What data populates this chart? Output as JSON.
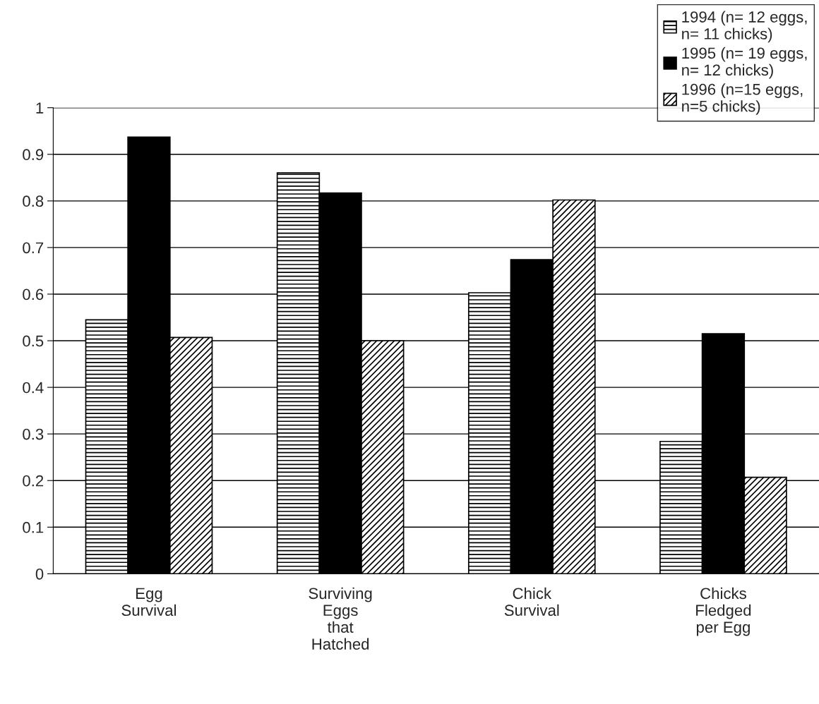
{
  "chart_data": {
    "type": "bar",
    "categories": [
      "Egg\nSurvival",
      "Surviving\nEggs\nthat\nHatched",
      "Chick\nSurvival",
      "Chicks\nFledged\nper Egg"
    ],
    "series": [
      {
        "name": "1994 (n= 12 eggs,\nn= 11 chicks)",
        "color": "#000000",
        "values": [
          0.545,
          0.86,
          0.603,
          0.284
        ]
      },
      {
        "name": "1995 (n= 19 eggs,\nn= 12 chicks)",
        "color": "#000000",
        "values": [
          0.937,
          0.817,
          0.674,
          0.515
        ]
      },
      {
        "name": "1996 (n=15 eggs,\nn=5 chicks)",
        "color": "#000000",
        "values": [
          0.507,
          0.5,
          0.802,
          0.207
        ]
      }
    ],
    "ylim": [
      0,
      1
    ],
    "yticks": [
      0,
      0.1,
      0.2,
      0.3,
      0.4,
      0.5,
      0.6,
      0.7,
      0.8,
      0.9,
      1
    ],
    "grid": "y",
    "legend": "top right"
  }
}
